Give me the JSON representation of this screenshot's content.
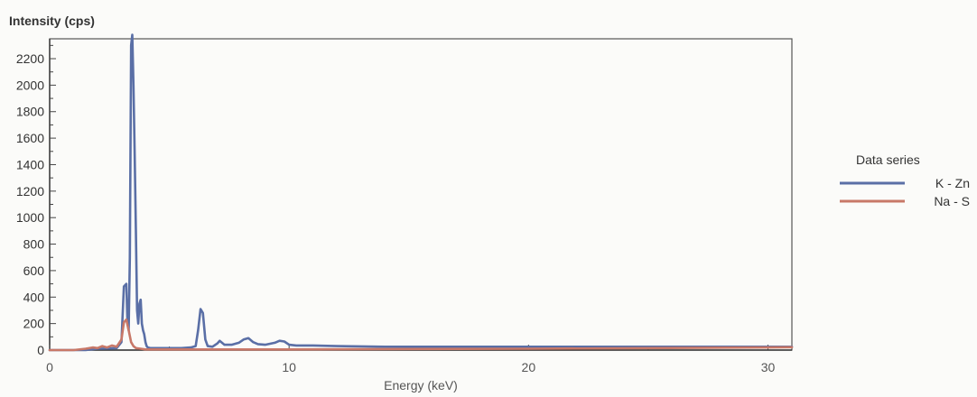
{
  "chart_data": {
    "type": "line",
    "title": "",
    "ylabel": "Intensity (cps)",
    "xlabel": "Energy (keV)",
    "xlim": [
      0,
      31
    ],
    "ylim": [
      0,
      2350
    ],
    "xticks": [
      0,
      10,
      20,
      30
    ],
    "yticks": [
      0,
      200,
      400,
      600,
      800,
      1000,
      1200,
      1400,
      1600,
      1800,
      2000,
      2200
    ],
    "grid": false,
    "legend": {
      "title": "Data series",
      "position": "right"
    },
    "series": [
      {
        "name": "K - Zn",
        "color": "#5a6fa6",
        "x": [
          0,
          1.5,
          2.0,
          2.5,
          2.8,
          3.0,
          3.1,
          3.2,
          3.25,
          3.3,
          3.35,
          3.4,
          3.45,
          3.5,
          3.55,
          3.6,
          3.65,
          3.7,
          3.75,
          3.8,
          3.85,
          3.9,
          3.95,
          4.0,
          4.05,
          4.1,
          4.2,
          4.4,
          4.8,
          5.5,
          5.9,
          6.1,
          6.2,
          6.3,
          6.4,
          6.5,
          6.6,
          6.8,
          7.0,
          7.1,
          7.3,
          7.6,
          7.9,
          8.1,
          8.3,
          8.5,
          8.7,
          9.0,
          9.4,
          9.6,
          9.8,
          10.0,
          10.3,
          11.0,
          12.0,
          13.0,
          14.0,
          14.4,
          20,
          25,
          30,
          31
        ],
        "y": [
          0,
          0,
          10,
          12,
          15,
          60,
          480,
          500,
          200,
          150,
          700,
          2300,
          2380,
          2000,
          1500,
          900,
          300,
          200,
          350,
          380,
          200,
          150,
          120,
          60,
          30,
          20,
          15,
          15,
          15,
          15,
          20,
          30,
          150,
          310,
          280,
          80,
          30,
          25,
          50,
          70,
          40,
          40,
          55,
          80,
          90,
          60,
          45,
          40,
          55,
          70,
          65,
          40,
          35,
          35,
          30,
          28,
          25,
          25,
          25,
          25,
          25,
          25
        ]
      },
      {
        "name": "Na - S",
        "color": "#c87868",
        "x": [
          0,
          1.0,
          1.5,
          1.8,
          2.0,
          2.2,
          2.4,
          2.6,
          2.8,
          3.0,
          3.1,
          3.2,
          3.3,
          3.4,
          3.5,
          3.6,
          3.8,
          4.0,
          5,
          10,
          15,
          20,
          25,
          30,
          31
        ],
        "y": [
          0,
          0,
          10,
          20,
          15,
          30,
          20,
          35,
          25,
          80,
          210,
          230,
          150,
          60,
          30,
          15,
          10,
          5,
          5,
          5,
          8,
          10,
          15,
          20,
          22
        ]
      }
    ]
  }
}
